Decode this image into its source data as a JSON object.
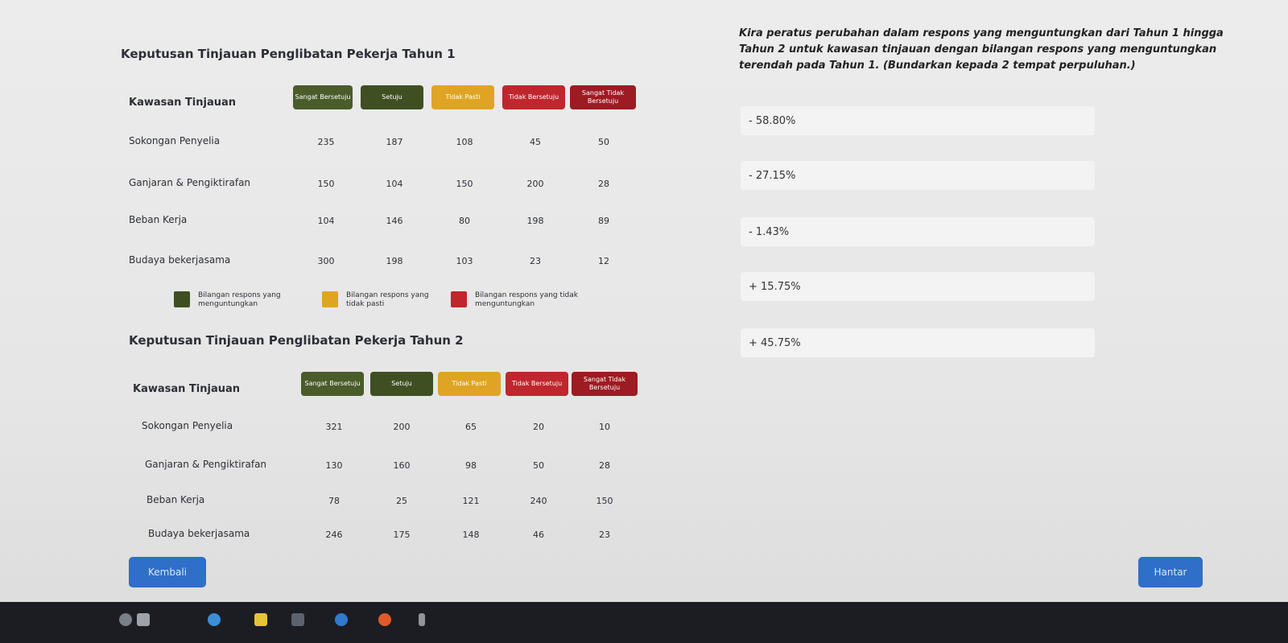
{
  "question": {
    "text": "Kira peratus perubahan dalam respons yang menguntungkan dari Tahun 1 hingga Tahun 2 untuk kawasan tinjauan dengan bilangan respons yang menguntungkan terendah pada Tahun 1. (Bundarkan kepada 2 tempat perpuluhan.)"
  },
  "options": [
    "- 58.80%",
    "- 27.15%",
    "- 1.43%",
    "+ 15.75%",
    "+ 45.75%"
  ],
  "year1": {
    "title": "Keputusan Tinjauan Penglibatan Pekerja Tahun 1",
    "area_label": "Kawasan Tinjauan",
    "headers": [
      "Sangat Bersetuju",
      "Setuju",
      "Tidak Pasti",
      "Tidak Bersetuju",
      "Sangat Tidak Bersetuju"
    ],
    "rows": [
      {
        "label": "Sokongan Penyelia",
        "values": [
          "235",
          "187",
          "108",
          "45",
          "50"
        ]
      },
      {
        "label": "Ganjaran & Pengiktirafan",
        "values": [
          "150",
          "104",
          "150",
          "200",
          "28"
        ]
      },
      {
        "label": "Beban Kerja",
        "values": [
          "104",
          "146",
          "80",
          "198",
          "89"
        ]
      },
      {
        "label": "Budaya bekerjasama",
        "values": [
          "300",
          "198",
          "103",
          "23",
          "12"
        ]
      }
    ]
  },
  "legend": [
    {
      "text": "Bilangan respons yang menguntungkan",
      "color": "#3f4f22"
    },
    {
      "text": "Bilangan respons yang tidak pasti",
      "color": "#e0a424"
    },
    {
      "text": "Bilangan respons yang tidak menguntungkan",
      "color": "#c0262d"
    }
  ],
  "year2": {
    "title": "Keputusan Tinjauan Penglibatan Pekerja Tahun 2",
    "area_label": "Kawasan Tinjauan",
    "headers": [
      "Sangat Bersetuju",
      "Setuju",
      "Tidak Pasti",
      "Tidak Bersetuju",
      "Sangat Tidak Bersetuju"
    ],
    "rows": [
      {
        "label": "Sokongan Penyelia",
        "values": [
          "321",
          "200",
          "65",
          "20",
          "10"
        ]
      },
      {
        "label": "Ganjaran & Pengiktirafan",
        "values": [
          "130",
          "160",
          "98",
          "50",
          "28"
        ]
      },
      {
        "label": "Beban Kerja",
        "values": [
          "78",
          "25",
          "121",
          "240",
          "150"
        ]
      },
      {
        "label": "Budaya bekerjasama",
        "values": [
          "246",
          "175",
          "148",
          "46",
          "23"
        ]
      }
    ]
  },
  "buttons": {
    "back": "Kembali",
    "submit": "Hantar"
  }
}
